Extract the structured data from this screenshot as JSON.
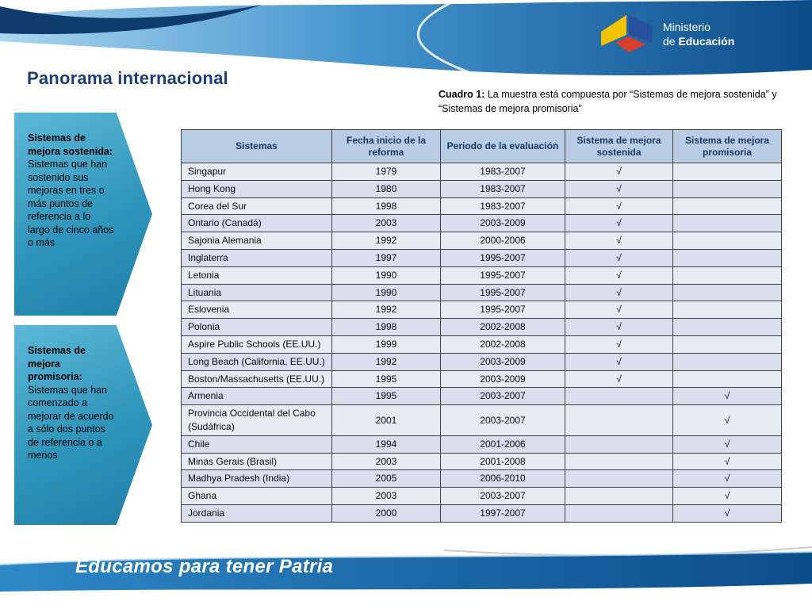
{
  "logo": {
    "line1": "Ministerio",
    "line2_prefix": "de ",
    "line2_bold": "Educación"
  },
  "title": "Panorama internacional",
  "caption": {
    "label": "Cuadro 1:",
    "text": " La muestra está compuesta por “Sistemas de mejora sostenida” y “Sistemas de mejora promisoria”"
  },
  "callouts": [
    {
      "heading": "Sistemas de mejora sostenida:",
      "body": "Sistemas que han sostenido sus mejoras en tres o más puntos de referencia a lo largo de cinco años o más"
    },
    {
      "heading": "Sistemas de mejora promisoria:",
      "body": "Sistemas que han comenzado a mejorar de acuerdo a sólo dos puntos de referencia o a menos"
    }
  ],
  "table": {
    "headers": [
      "Sistemas",
      "Fecha inicio de la reforma",
      "Periodo de la evaluación",
      "Sistema de mejora sostenida",
      "Sistema de mejora promisoria"
    ],
    "rows": [
      {
        "sistema": "Singapur",
        "fecha": "1979",
        "periodo": "1983-2007",
        "sostenida": "√",
        "promisoria": ""
      },
      {
        "sistema": "Hong Kong",
        "fecha": "1980",
        "periodo": "1983-2007",
        "sostenida": "√",
        "promisoria": ""
      },
      {
        "sistema": "Corea del Sur",
        "fecha": "1998",
        "periodo": "1983-2007",
        "sostenida": "√",
        "promisoria": ""
      },
      {
        "sistema": "Ontario (Canadá)",
        "fecha": "2003",
        "periodo": "2003-2009",
        "sostenida": "√",
        "promisoria": ""
      },
      {
        "sistema": "Sajonia Alemania",
        "fecha": "1992",
        "periodo": "2000-2006",
        "sostenida": "√",
        "promisoria": ""
      },
      {
        "sistema": "Inglaterra",
        "fecha": "1997",
        "periodo": "1995-2007",
        "sostenida": "√",
        "promisoria": ""
      },
      {
        "sistema": "Letonia",
        "fecha": "1990",
        "periodo": "1995-2007",
        "sostenida": "√",
        "promisoria": ""
      },
      {
        "sistema": "Lituania",
        "fecha": "1990",
        "periodo": "1995-2007",
        "sostenida": "√",
        "promisoria": ""
      },
      {
        "sistema": "Eslovenia",
        "fecha": "1992",
        "periodo": "1995-2007",
        "sostenida": "√",
        "promisoria": ""
      },
      {
        "sistema": "Polonia",
        "fecha": "1998",
        "periodo": "2002-2008",
        "sostenida": "√",
        "promisoria": ""
      },
      {
        "sistema": "Aspire Public Schools (EE.UU.)",
        "fecha": "1999",
        "periodo": "2002-2008",
        "sostenida": "√",
        "promisoria": ""
      },
      {
        "sistema": "Long Beach (California, EE.UU.)",
        "fecha": "1992",
        "periodo": "2003-2009",
        "sostenida": "√",
        "promisoria": ""
      },
      {
        "sistema": "Boston/Massachusetts (EE.UU.)",
        "fecha": "1995",
        "periodo": "2003-2009",
        "sostenida": "√",
        "promisoria": ""
      },
      {
        "sistema": "Armenia",
        "fecha": "1995",
        "periodo": "2003-2007",
        "sostenida": "",
        "promisoria": "√"
      },
      {
        "sistema": "Provincia Occidental del Cabo (Sudáfrica)",
        "fecha": "2001",
        "periodo": "2003-2007",
        "sostenida": "",
        "promisoria": "√"
      },
      {
        "sistema": "Chile",
        "fecha": "1994",
        "periodo": "2001-2006",
        "sostenida": "",
        "promisoria": "√"
      },
      {
        "sistema": "Minas Gerais (Brasil)",
        "fecha": "2003",
        "periodo": "2001-2008",
        "sostenida": "",
        "promisoria": "√"
      },
      {
        "sistema": "Madhya Pradesh (India)",
        "fecha": "2005",
        "periodo": "2006-2010",
        "sostenida": "",
        "promisoria": "√"
      },
      {
        "sistema": "Ghana",
        "fecha": "2003",
        "periodo": "2003-2007",
        "sostenida": "",
        "promisoria": "√"
      },
      {
        "sistema": "Jordania",
        "fecha": "2000",
        "periodo": "1997-2007",
        "sostenida": "",
        "promisoria": "√"
      }
    ]
  },
  "footer": {
    "slogan": "Educamos para tener Patria"
  },
  "colors": {
    "accent_teal": "#2f95ba",
    "header_band_dark": "#0b4c89",
    "header_band_light": "#a9d6f0",
    "table_header_bg": "#b8cce4",
    "title_color": "#1d3d76"
  }
}
